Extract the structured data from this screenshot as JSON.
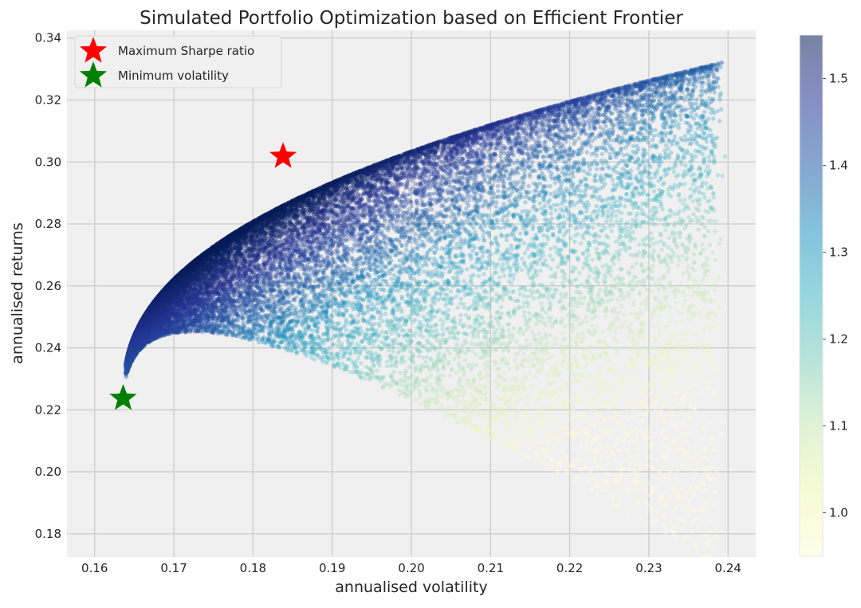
{
  "chart_data": {
    "type": "scatter",
    "title": "Simulated Portfolio Optimization based on Efficient Frontier",
    "xlabel": "annualised volatility",
    "ylabel": "annualised returns",
    "xlim": [
      0.1565,
      0.2435
    ],
    "ylim": [
      0.1725,
      0.3425
    ],
    "xticks": [
      0.16,
      0.17,
      0.18,
      0.19,
      0.2,
      0.21,
      0.22,
      0.23,
      0.24
    ],
    "xtick_labels": [
      "0.16",
      "0.17",
      "0.18",
      "0.19",
      "0.20",
      "0.21",
      "0.22",
      "0.23",
      "0.24"
    ],
    "yticks": [
      0.18,
      0.2,
      0.22,
      0.24,
      0.26,
      0.28,
      0.3,
      0.32,
      0.34
    ],
    "ytick_labels": [
      "0.18",
      "0.20",
      "0.22",
      "0.24",
      "0.26",
      "0.28",
      "0.30",
      "0.32",
      "0.34"
    ],
    "grid": true,
    "legend_position": "top-left",
    "legend": [
      {
        "label": "Maximum Sharpe ratio",
        "marker": "star",
        "color": "#ff0000"
      },
      {
        "label": "Minimum volatility",
        "marker": "star",
        "color": "#008000"
      }
    ],
    "markers": [
      {
        "name": "Maximum Sharpe ratio",
        "x": 0.1838,
        "y": 0.3018,
        "color": "#ff0000"
      },
      {
        "name": "Minimum volatility",
        "x": 0.1636,
        "y": 0.2237,
        "color": "#008000"
      }
    ],
    "scatter_cloud": {
      "point_count": 25000,
      "colormap": "YlGnBu",
      "alpha": 0.3,
      "frontier_x_range": [
        0.1636,
        0.2375
      ],
      "frontier_y_range": [
        0.2237,
        0.331
      ]
    },
    "colorbar": {
      "range": [
        0.95,
        1.55
      ],
      "ticks": [
        1.0,
        1.1,
        1.2,
        1.3,
        1.4,
        1.5
      ],
      "tick_labels": [
        "1.0",
        "1.1",
        "1.2",
        "1.3",
        "1.4",
        "1.5"
      ]
    },
    "colors": {
      "axes_background": "#f0f0f0",
      "grid": "#cbcbcb",
      "colormap_stops": [
        "#ffffd9",
        "#edf8b1",
        "#c7e9b4",
        "#7fcdbb",
        "#41b6c4",
        "#1d91c0",
        "#225ea8",
        "#253494",
        "#081d58"
      ]
    }
  }
}
